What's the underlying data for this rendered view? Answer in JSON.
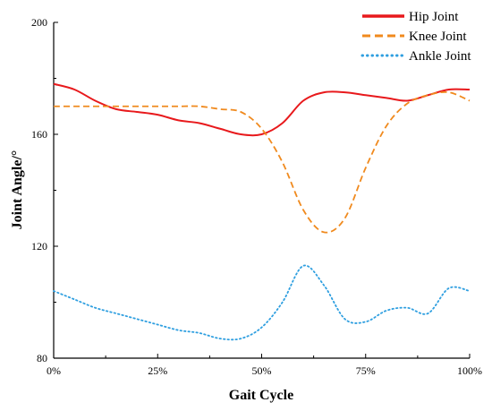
{
  "chart_data": {
    "type": "line",
    "xlabel": "Gait Cycle",
    "ylabel": "Joint Angle/°",
    "xlim": [
      0,
      100
    ],
    "ylim": [
      80,
      200
    ],
    "x_ticks": [
      0,
      25,
      50,
      75,
      100
    ],
    "x_tick_labels": [
      "0%",
      "25%",
      "50%",
      "75%",
      "100%"
    ],
    "y_ticks": [
      80,
      120,
      160,
      200
    ],
    "y_tick_labels": [
      "80",
      "120",
      "160",
      "200"
    ],
    "grid": false,
    "legend_position": "top-right",
    "x": [
      0,
      5,
      10,
      15,
      20,
      25,
      30,
      35,
      40,
      45,
      50,
      55,
      60,
      65,
      70,
      75,
      80,
      85,
      90,
      95,
      100
    ],
    "series": [
      {
        "name": "Hip Joint",
        "color": "#e8191c",
        "style": "solid",
        "values": [
          178,
          176,
          172,
          169,
          168,
          167,
          165,
          164,
          162,
          160,
          160,
          164,
          172,
          175,
          175,
          174,
          173,
          172,
          174,
          176,
          176
        ]
      },
      {
        "name": "Knee Joint",
        "color": "#f08a1e",
        "style": "dashed",
        "values": [
          170,
          170,
          170,
          170,
          170,
          170,
          170,
          170,
          169,
          168,
          162,
          150,
          133,
          125,
          130,
          148,
          163,
          171,
          174,
          175,
          172
        ]
      },
      {
        "name": "Ankle Joint",
        "color": "#2f9fe0",
        "style": "dotted",
        "values": [
          104,
          101,
          98,
          96,
          94,
          92,
          90,
          89,
          87,
          87,
          91,
          100,
          113,
          106,
          94,
          93,
          97,
          98,
          96,
          105,
          104
        ]
      }
    ]
  }
}
